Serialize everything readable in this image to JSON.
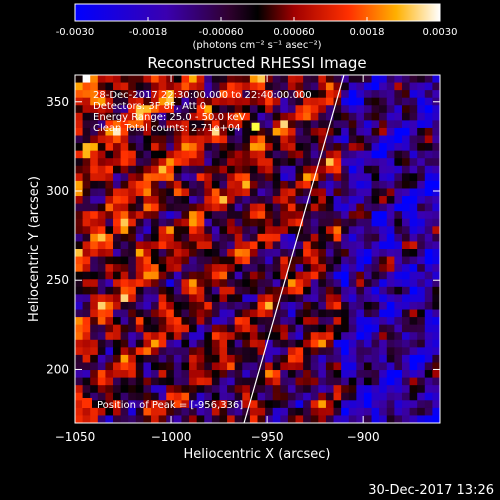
{
  "colorbar": {
    "ticks": [
      "-0.0030",
      "-0.0018",
      "-0.00060",
      "0.00060",
      "0.0018",
      "0.0030"
    ],
    "vmin": -0.003,
    "vmax": 0.003,
    "units_label": "(photons cm⁻² s⁻¹ asec⁻²)"
  },
  "chart_data": {
    "type": "heatmap",
    "title": "Reconstructed RHESSI Image",
    "xlabel": "Heliocentric X (arcsec)",
    "ylabel": "Heliocentric Y (arcsec)",
    "xlim": [
      -1050,
      -860
    ],
    "ylim": [
      170,
      365
    ],
    "xticks": [
      -1050,
      -1000,
      -950,
      -900
    ],
    "yticks": [
      200,
      250,
      300,
      350
    ],
    "xtick_labels": [
      "−1050",
      "−1000",
      "−950",
      "−900"
    ],
    "ytick_labels": [
      "200",
      "250",
      "300",
      "350"
    ],
    "limb_line": {
      "x": [
        -962,
        -910
      ],
      "y": [
        170,
        365
      ]
    },
    "annotations": [
      "28-Dec-2017 22:30:00.000 to 22:40:00.000",
      "Detectors: 3F 8F, Att 0",
      "Energy Range: 25.0 - 50.0 keV",
      "Clean    Total counts: 2.71e+04"
    ],
    "peak_label": "Position of Peak = [-956,336]",
    "peak": {
      "x": -956,
      "y": 336
    }
  },
  "footer": {
    "timestamp": "30-Dec-2017 13:26"
  }
}
